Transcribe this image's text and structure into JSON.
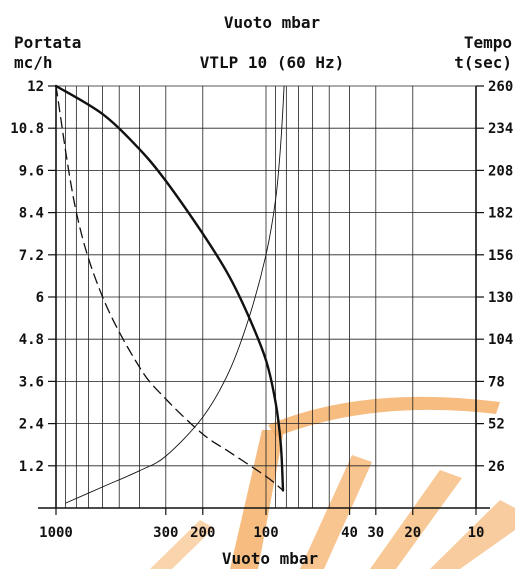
{
  "chart_data": {
    "type": "line",
    "title": "VTLP 10 (60 Hz)",
    "top_axis_label": "Vuoto mbar",
    "xlabel": "Vuoto mbar",
    "x_scale": "log",
    "x_reversed": true,
    "xlim": [
      1000,
      10
    ],
    "x_ticks": [
      1000,
      300,
      200,
      100,
      40,
      30,
      20,
      10
    ],
    "x_gridlines": [
      1000,
      900,
      800,
      700,
      600,
      500,
      400,
      300,
      200,
      100,
      90,
      80,
      70,
      60,
      50,
      40,
      30,
      20,
      10
    ],
    "ylabel_left": [
      "Portata",
      "mc/h"
    ],
    "ylim_left": [
      0,
      12
    ],
    "y_ticks_left": [
      "12",
      "10.8",
      "9.6",
      "8.4",
      "7.2",
      "6",
      "4.8",
      "3.6",
      "2.4",
      "1.2"
    ],
    "ylabel_right": [
      "Tempo",
      "t(sec)"
    ],
    "ylim_right": [
      0,
      260
    ],
    "y_ticks_right": [
      "260",
      "234",
      "208",
      "182",
      "156",
      "130",
      "104",
      "78",
      "52",
      "26"
    ],
    "grid": true,
    "watermark_color": "#f5b06a",
    "series": [
      {
        "style": "thick-solid",
        "axis": "left",
        "x": [
          1000,
          600,
          400,
          300,
          200,
          150,
          120,
          100,
          90,
          85,
          83
        ],
        "y": [
          12,
          11.2,
          10.2,
          9.3,
          7.8,
          6.6,
          5.4,
          4.2,
          3.0,
          1.8,
          0.5
        ]
      },
      {
        "style": "dashed",
        "axis": "left",
        "x": [
          1000,
          800,
          600,
          400,
          300,
          200,
          150,
          100,
          83
        ],
        "y": [
          12,
          8.4,
          6.0,
          4.0,
          3.1,
          2.1,
          1.6,
          0.9,
          0.5
        ]
      },
      {
        "style": "thin-solid",
        "axis": "right",
        "x": [
          900,
          600,
          400,
          300,
          200,
          150,
          120,
          100,
          90,
          85,
          82
        ],
        "y": [
          3,
          13,
          23,
          32,
          56,
          84,
          118,
          156,
          190,
          225,
          260
        ]
      }
    ]
  }
}
